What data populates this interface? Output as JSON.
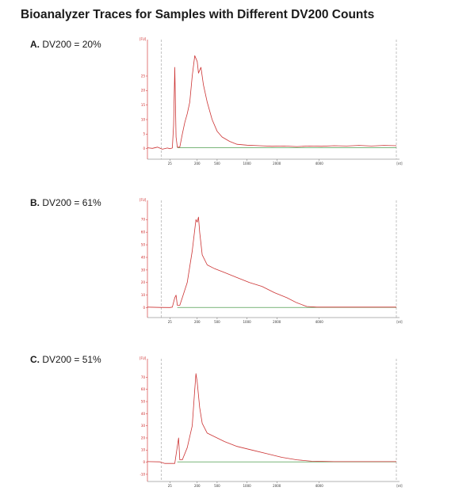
{
  "title": "Bioanalyzer Traces for Samples with Different DV200 Counts",
  "colors": {
    "trace": "#cc3333",
    "baseline": "#2a8a2a",
    "marker": "#9a9a9a",
    "axis_red": "#cc2222"
  },
  "chart_data": [
    {
      "type": "line",
      "panel_letter": "A.",
      "panel_label": "DV200 = 20%",
      "y_unit": "[FU]",
      "x_unit": "[nt]",
      "ylim": [
        -2,
        37
      ],
      "yticks": [
        0,
        5,
        10,
        15,
        20,
        25
      ],
      "ytick_labels": [
        "0",
        "5",
        "10",
        "15",
        "20",
        "25"
      ],
      "xtick_labels": [
        "25",
        "200",
        "500",
        "1000",
        "2000",
        "4000"
      ],
      "x_positions": [
        0.09,
        0.2,
        0.28,
        0.4,
        0.52,
        0.69
      ],
      "series": [
        {
          "values": [
            [
              0.0,
              0.3
            ],
            [
              0.02,
              0.1
            ],
            [
              0.04,
              0.5
            ],
            [
              0.06,
              -0.2
            ],
            [
              0.08,
              0.2
            ],
            [
              0.09,
              0.0
            ],
            [
              0.1,
              0.2
            ],
            [
              0.105,
              8
            ],
            [
              0.11,
              28
            ],
            [
              0.115,
              4
            ],
            [
              0.12,
              0.5
            ],
            [
              0.13,
              0.5
            ],
            [
              0.14,
              5
            ],
            [
              0.15,
              9
            ],
            [
              0.16,
              12
            ],
            [
              0.17,
              16
            ],
            [
              0.18,
              25
            ],
            [
              0.19,
              32
            ],
            [
              0.2,
              30
            ],
            [
              0.205,
              26
            ],
            [
              0.215,
              28
            ],
            [
              0.225,
              22
            ],
            [
              0.24,
              16
            ],
            [
              0.26,
              10
            ],
            [
              0.28,
              6
            ],
            [
              0.3,
              4
            ],
            [
              0.33,
              2.5
            ],
            [
              0.36,
              1.5
            ],
            [
              0.4,
              1.2
            ],
            [
              0.45,
              1.0
            ],
            [
              0.5,
              0.8
            ],
            [
              0.55,
              0.9
            ],
            [
              0.6,
              0.7
            ],
            [
              0.65,
              0.9
            ],
            [
              0.7,
              0.8
            ],
            [
              0.75,
              1.0
            ],
            [
              0.8,
              0.9
            ],
            [
              0.85,
              1.1
            ],
            [
              0.9,
              0.9
            ],
            [
              0.95,
              1.1
            ],
            [
              1.0,
              1.0
            ]
          ]
        }
      ]
    },
    {
      "type": "line",
      "panel_letter": "B.",
      "panel_label": "DV200 = 61%",
      "y_unit": "[FU]",
      "x_unit": "[nt]",
      "ylim": [
        -4,
        84
      ],
      "yticks": [
        0,
        10,
        20,
        30,
        40,
        50,
        60,
        70
      ],
      "ytick_labels": [
        "0",
        "10",
        "20",
        "30",
        "40",
        "50",
        "60",
        "70"
      ],
      "xtick_labels": [
        "25",
        "200",
        "500",
        "1000",
        "2000",
        "4000"
      ],
      "x_positions": [
        0.09,
        0.2,
        0.28,
        0.4,
        0.52,
        0.69
      ],
      "series": [
        {
          "values": [
            [
              0.0,
              0.5
            ],
            [
              0.05,
              0.3
            ],
            [
              0.09,
              0.2
            ],
            [
              0.1,
              0.5
            ],
            [
              0.11,
              8
            ],
            [
              0.115,
              10
            ],
            [
              0.12,
              2
            ],
            [
              0.13,
              2
            ],
            [
              0.14,
              8
            ],
            [
              0.16,
              20
            ],
            [
              0.18,
              45
            ],
            [
              0.195,
              70
            ],
            [
              0.2,
              68
            ],
            [
              0.205,
              72
            ],
            [
              0.21,
              60
            ],
            [
              0.22,
              42
            ],
            [
              0.24,
              34
            ],
            [
              0.27,
              31
            ],
            [
              0.31,
              28
            ],
            [
              0.36,
              24
            ],
            [
              0.41,
              20
            ],
            [
              0.46,
              17
            ],
            [
              0.51,
              12
            ],
            [
              0.56,
              8
            ],
            [
              0.6,
              4
            ],
            [
              0.64,
              1
            ],
            [
              0.68,
              0.5
            ],
            [
              0.75,
              0.5
            ],
            [
              0.85,
              0.5
            ],
            [
              1.0,
              0.5
            ]
          ]
        }
      ]
    },
    {
      "type": "line",
      "panel_letter": "C.",
      "panel_label": "DV200 = 51%",
      "y_unit": "[FU]",
      "x_unit": "[nt]",
      "ylim": [
        -12,
        84
      ],
      "yticks": [
        -10,
        0,
        10,
        20,
        30,
        40,
        50,
        60,
        70
      ],
      "ytick_labels": [
        "-10",
        "0",
        "10",
        "20",
        "30",
        "40",
        "50",
        "60",
        "70"
      ],
      "xtick_labels": [
        "25",
        "200",
        "500",
        "1000",
        "2000",
        "4000"
      ],
      "x_positions": [
        0.09,
        0.2,
        0.28,
        0.4,
        0.52,
        0.69
      ],
      "series": [
        {
          "values": [
            [
              0.0,
              0.5
            ],
            [
              0.05,
              0.3
            ],
            [
              0.07,
              -1
            ],
            [
              0.09,
              -1
            ],
            [
              0.11,
              -1
            ],
            [
              0.125,
              20
            ],
            [
              0.13,
              2
            ],
            [
              0.14,
              2
            ],
            [
              0.16,
              12
            ],
            [
              0.18,
              30
            ],
            [
              0.19,
              60
            ],
            [
              0.195,
              73
            ],
            [
              0.2,
              66
            ],
            [
              0.21,
              45
            ],
            [
              0.22,
              32
            ],
            [
              0.24,
              24
            ],
            [
              0.27,
              21
            ],
            [
              0.31,
              17
            ],
            [
              0.36,
              13
            ],
            [
              0.42,
              10
            ],
            [
              0.48,
              7
            ],
            [
              0.54,
              4
            ],
            [
              0.6,
              2
            ],
            [
              0.66,
              0.8
            ],
            [
              0.75,
              0.5
            ],
            [
              0.85,
              0.5
            ],
            [
              1.0,
              0.5
            ]
          ]
        }
      ]
    }
  ]
}
